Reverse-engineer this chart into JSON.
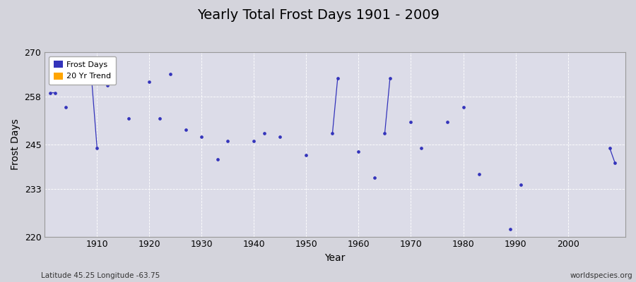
{
  "title": "Yearly Total Frost Days 1901 - 2009",
  "xlabel": "Year",
  "ylabel": "Frost Days",
  "footnote_left": "Latitude 45.25 Longitude -63.75",
  "footnote_right": "worldspecies.org",
  "ylim": [
    220,
    270
  ],
  "yticks": [
    220,
    233,
    245,
    258,
    270
  ],
  "line_color": "#3333bb",
  "marker_color": "#3333bb",
  "bg_outer": "#d4d4dc",
  "bg_inner": "#dcdce8",
  "legend_items": [
    {
      "label": "Frost Days",
      "color": "#3333bb"
    },
    {
      "label": "20 Yr Trend",
      "color": "#ffa500"
    }
  ],
  "years": [
    1901,
    1902,
    1903,
    1904,
    1905,
    1906,
    1907,
    1908,
    1909,
    1910,
    1911,
    1912,
    1913,
    1914,
    1915,
    1916,
    1917,
    1918,
    1919,
    1920,
    1921,
    1922,
    1923,
    1924,
    1925,
    1926,
    1927,
    1928,
    1929,
    1930,
    1931,
    1932,
    1933,
    1934,
    1935,
    1936,
    1937,
    1938,
    1939,
    1940,
    1941,
    1942,
    1943,
    1944,
    1945,
    1946,
    1947,
    1948,
    1949,
    1950,
    1951,
    1952,
    1953,
    1954,
    1955,
    1956,
    1957,
    1958,
    1959,
    1960,
    1961,
    1962,
    1963,
    1964,
    1965,
    1966,
    1967,
    1968,
    1969,
    1970,
    1971,
    1972,
    1973,
    1974,
    1975,
    1976,
    1977,
    1978,
    1979,
    1980,
    1981,
    1982,
    1983,
    1984,
    1985,
    1986,
    1987,
    1988,
    1989,
    1990,
    1991,
    1992,
    1993,
    1994,
    1995,
    1996,
    1997,
    1998,
    1999,
    2000,
    2001,
    2002,
    2003,
    2004,
    2005,
    2006,
    2007,
    2008,
    2009
  ],
  "values": [
    259,
    259,
    null,
    255,
    null,
    null,
    null,
    null,
    262,
    244,
    null,
    261,
    null,
    null,
    null,
    252,
    null,
    null,
    null,
    262,
    null,
    252,
    null,
    264,
    null,
    null,
    249,
    null,
    null,
    247,
    null,
    null,
    241,
    null,
    246,
    null,
    null,
    null,
    null,
    246,
    null,
    248,
    null,
    null,
    247,
    null,
    null,
    null,
    null,
    242,
    null,
    null,
    null,
    null,
    248,
    263,
    null,
    null,
    null,
    243,
    null,
    null,
    236,
    null,
    248,
    263,
    null,
    null,
    null,
    251,
    null,
    244,
    null,
    null,
    null,
    null,
    251,
    null,
    null,
    255,
    null,
    null,
    237,
    null,
    null,
    null,
    null,
    null,
    222,
    null,
    234,
    null,
    null,
    null,
    null,
    null,
    null,
    null,
    null,
    null,
    null,
    null,
    null,
    null,
    null,
    null,
    null,
    244,
    240
  ]
}
